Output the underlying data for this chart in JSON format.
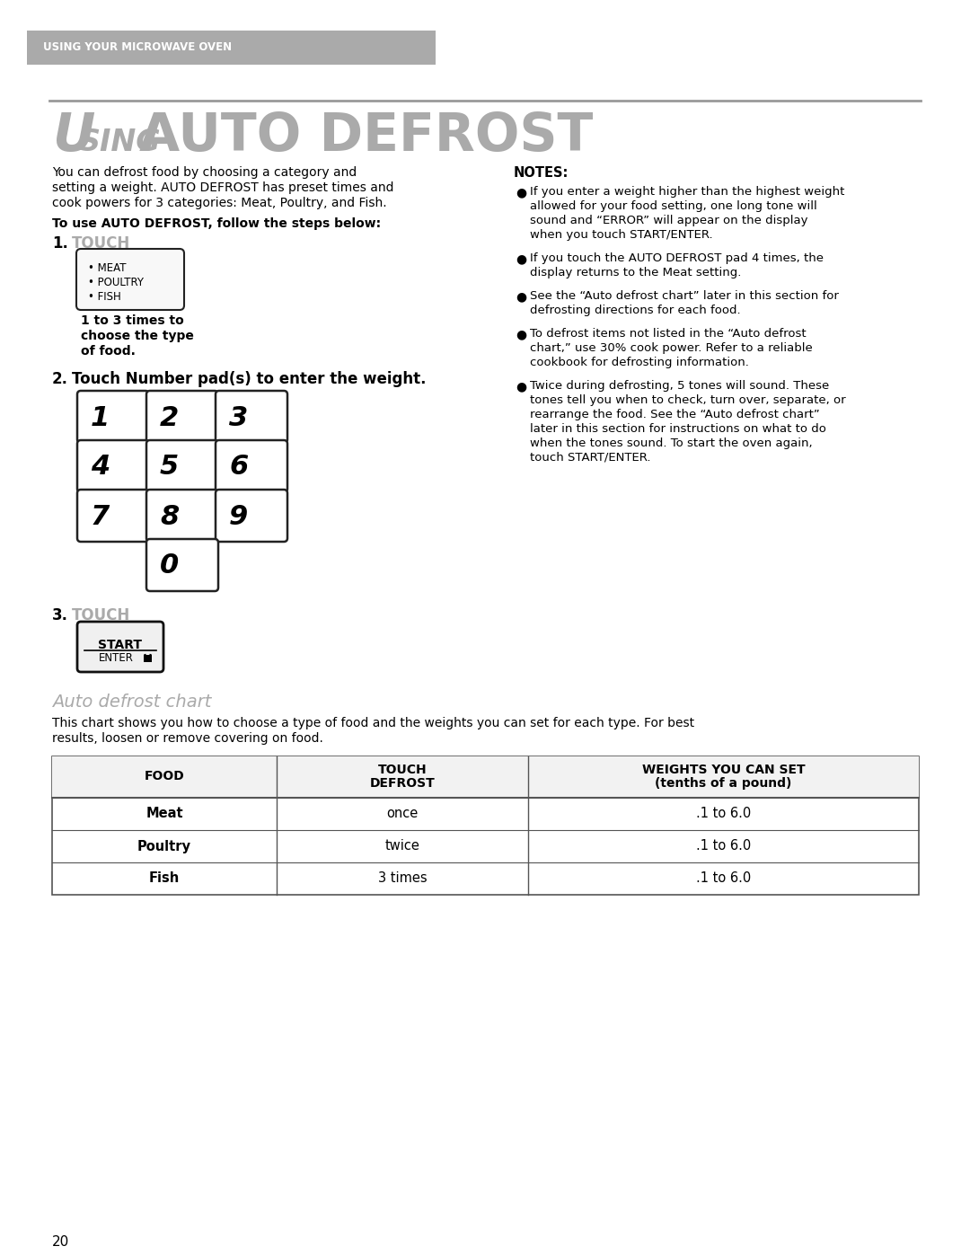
{
  "page_bg": "#ffffff",
  "header_bg": "#aaaaaa",
  "header_text": "USING YOUR MICROWAVE OVEN",
  "header_text_color": "#ffffff",
  "title_color": "#aaaaaa",
  "section_line_color": "#999999",
  "body_text_color": "#000000",
  "touch_color": "#aaaaaa",
  "intro_text": "You can defrost food by choosing a category and\nsetting a weight. AUTO DEFROST has preset times and\ncook powers for 3 categories: Meat, Poultry, and Fish.",
  "steps_header": "To use AUTO DEFROST, follow the steps below:",
  "step1_label": "1.",
  "step1_touch": "TOUCH",
  "button1_lines": [
    "• MEAT",
    "• POULTRY",
    "• FISH"
  ],
  "step1_subtext": "1 to 3 times to\nchoose the type\nof food.",
  "step2_label": "2.",
  "step2_text": "Touch Number pad(s) to enter the weight.",
  "numpad": [
    "1",
    "2",
    "3",
    "4",
    "5",
    "6",
    "7",
    "8",
    "9",
    "0"
  ],
  "step3_label": "3.",
  "step3_touch": "TOUCH",
  "notes_header": "NOTES:",
  "notes": [
    "If you enter a weight higher than the highest weight\nallowed for your food setting, one long tone will\nsound and “ERROR” will appear on the display\nwhen you touch START/ENTER.",
    "If you touch the AUTO DEFROST pad 4 times, the\ndisplay returns to the Meat setting.",
    "See the “Auto defrost chart” later in this section for\ndefrosting directions for each food.",
    "To defrost items not listed in the “Auto defrost\nchart,” use 30% cook power. Refer to a reliable\ncookbook for defrosting information.",
    "Twice during defrosting, 5 tones will sound. These\ntones tell you when to check, turn over, separate, or\nrearrange the food. See the “Auto defrost chart”\nlater in this section for instructions on what to do\nwhen the tones sound. To start the oven again,\ntouch START/ENTER."
  ],
  "chart_title": "Auto defrost chart",
  "chart_intro": "This chart shows you how to choose a type of food and the weights you can set for each type. For best\nresults, loosen or remove covering on food.",
  "table_headers": [
    "FOOD",
    "TOUCH\nDEFROST",
    "WEIGHTS YOU CAN SET\n(tenths of a pound)"
  ],
  "table_rows": [
    [
      "Meat",
      "once",
      ".1 to 6.0"
    ],
    [
      "Poultry",
      "twice",
      ".1 to 6.0"
    ],
    [
      "Fish",
      "3 times",
      ".1 to 6.0"
    ]
  ],
  "page_number": "20",
  "table_border_color": "#555555"
}
